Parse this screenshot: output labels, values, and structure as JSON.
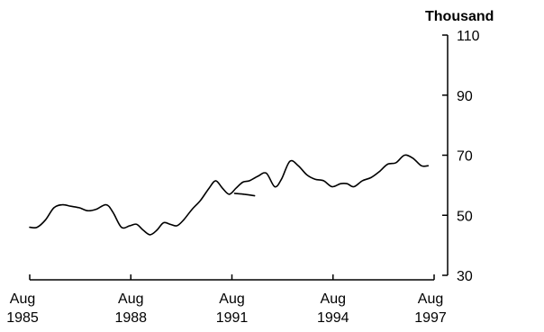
{
  "chart_data": {
    "type": "line",
    "unit_label": "Thousand",
    "ylim": [
      30,
      110
    ],
    "xlim": [
      1985.58,
      1997.58
    ],
    "y_ticks": [
      30,
      50,
      70,
      90,
      110
    ],
    "x_ticks": [
      {
        "year": 1985.58,
        "line1": "Aug",
        "line2": "1985"
      },
      {
        "year": 1988.58,
        "line1": "Aug",
        "line2": "1988"
      },
      {
        "year": 1991.58,
        "line1": "Aug",
        "line2": "1991"
      },
      {
        "year": 1994.58,
        "line1": "Aug",
        "line2": "1994"
      },
      {
        "year": 1997.58,
        "line1": "Aug",
        "line2": "1997"
      }
    ],
    "grid": false,
    "y_axis_side": "right",
    "series": [
      {
        "color": "#000000",
        "x": [
          1985.58,
          1985.8,
          1986.05,
          1986.3,
          1986.55,
          1986.8,
          1987.05,
          1987.3,
          1987.55,
          1987.85,
          1988.05,
          1988.3,
          1988.55,
          1988.75,
          1988.95,
          1989.15,
          1989.35,
          1989.55,
          1989.75,
          1989.95,
          1990.15,
          1990.4,
          1990.65,
          1990.9,
          1991.1,
          1991.3,
          1991.5,
          1991.7,
          1991.9,
          1992.1,
          1992.35,
          1992.6,
          1992.85,
          1993.05,
          1993.3,
          1993.55,
          1993.8,
          1994.05,
          1994.3,
          1994.55,
          1994.8,
          1995.0,
          1995.2,
          1995.45,
          1995.7,
          1995.95,
          1996.2,
          1996.45,
          1996.7,
          1996.95,
          1997.2,
          1997.4
        ],
        "y": [
          46,
          46,
          48.5,
          52.5,
          53.5,
          53,
          52.5,
          51.5,
          52,
          53.5,
          51,
          46,
          46.5,
          47,
          45,
          43.5,
          45,
          47.5,
          47,
          46.5,
          48.5,
          52,
          55,
          59,
          61.5,
          59,
          57,
          59,
          61,
          61.5,
          63,
          64,
          59.5,
          62,
          68,
          66.5,
          63.5,
          62,
          61.5,
          59.5,
          60.5,
          60.5,
          59.5,
          61.5,
          62.5,
          64.5,
          67,
          67.5,
          70,
          69,
          66.5,
          66.5
        ]
      },
      {
        "color": "#000000",
        "x": [
          1991.66,
          1991.95,
          1992.25
        ],
        "y": [
          57.3,
          57.0,
          56.5
        ]
      }
    ]
  }
}
